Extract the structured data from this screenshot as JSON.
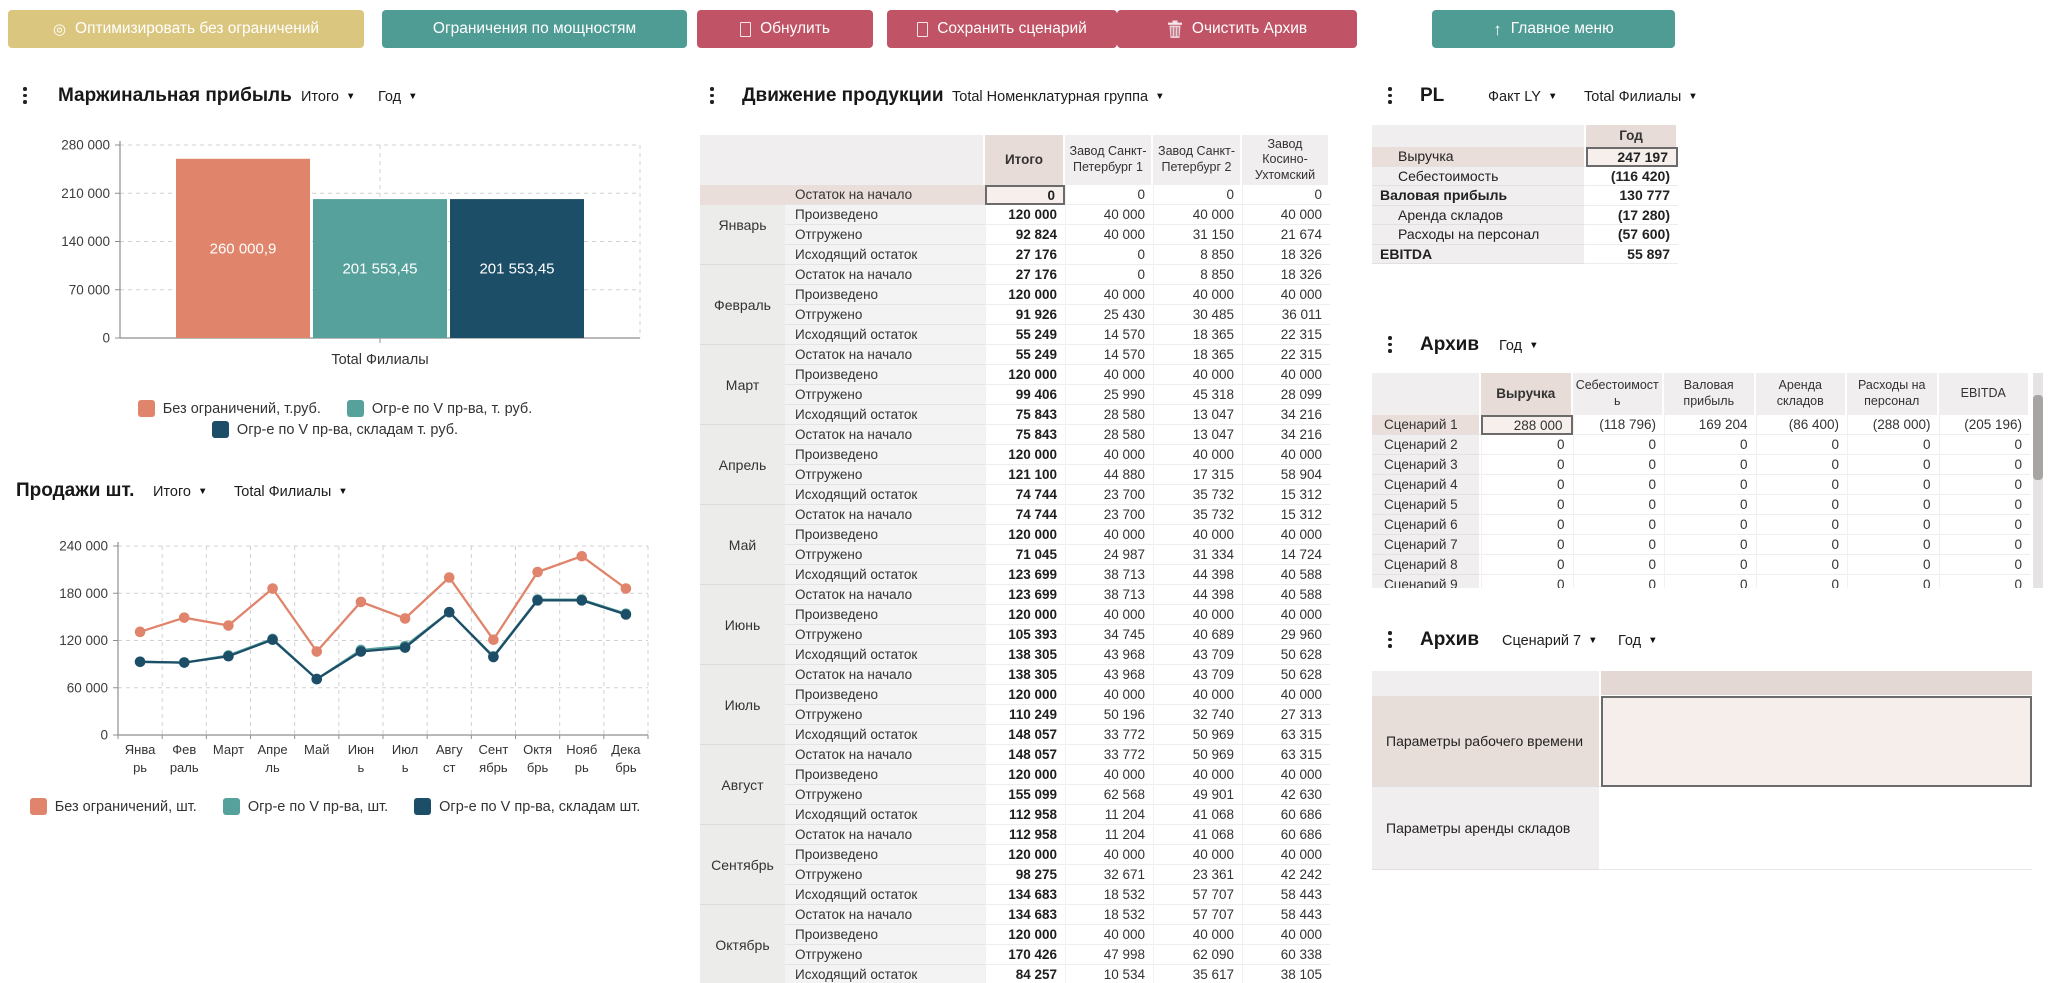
{
  "toolbar": {
    "buttons": [
      {
        "label": "Оптимизировать без ограничений",
        "icon": "gear",
        "bg": "#dbc67f"
      },
      {
        "label": "Ограничения по мощностям",
        "icon": null,
        "bg": "#4f9c95"
      },
      {
        "label": "Обнулить",
        "icon": "glyph-box",
        "bg": "#c05365"
      },
      {
        "label": "Сохранить сценарий",
        "icon": "glyph-box",
        "bg": "#c05365"
      },
      {
        "label": "Очистить Архив",
        "icon": "trash",
        "bg": "#c05365"
      },
      {
        "label": "Главное меню",
        "icon": "arrow-up",
        "bg": "#4f9c95"
      }
    ]
  },
  "colors": {
    "salmon": "#e0846c",
    "teal": "#56a19b",
    "dark_blue": "#1d4e68",
    "pink_header": "#e8dcd8",
    "pink_selected_row": "#eadeda",
    "pink_selected_cell": "#f7efec",
    "gray_header": "#f0eeee"
  },
  "margin_profit": {
    "title": "Маржинальная прибыль",
    "filters": [
      {
        "value": "Итого"
      },
      {
        "value": "Год"
      }
    ],
    "chart_data": {
      "type": "bar",
      "title": "Маржинальная прибыль",
      "categories": [
        "Total Филиалы"
      ],
      "series": [
        {
          "name": "Без ограничений, т.руб.",
          "color": "#e0846c",
          "values": [
            260000.9
          ],
          "label": "260 000,9"
        },
        {
          "name": "Огр-е по V пр-ва, т. руб.",
          "color": "#56a19b",
          "values": [
            201553.45
          ],
          "label": "201 553,45"
        },
        {
          "name": "Огр-е по V пр-ва, складам т. руб.",
          "color": "#1d4e68",
          "values": [
            201553.45
          ],
          "label": "201 553,45"
        }
      ],
      "ylim": [
        0,
        280000
      ],
      "yticks": [
        "0",
        "70 000",
        "140 000",
        "210 000",
        "280 000"
      ],
      "grid": "dashed",
      "legend_position": "bottom"
    }
  },
  "sales": {
    "title": "Продажи шт.",
    "filters": [
      {
        "value": "Итого"
      },
      {
        "value": "Total Филиалы"
      }
    ],
    "chart_data": {
      "type": "line",
      "categories": [
        "Январь",
        "Февраль",
        "Март",
        "Апрель",
        "Май",
        "Июнь",
        "Июль",
        "Август",
        "Сентябрь",
        "Октябрь",
        "Ноябрь",
        "Декабрь"
      ],
      "tick_labels": [
        [
          "Янва",
          "рь"
        ],
        [
          "Фев",
          "раль"
        ],
        [
          "Март"
        ],
        [
          "Апре",
          "ль"
        ],
        [
          "Май"
        ],
        [
          "Июн",
          "ь"
        ],
        [
          "Июл",
          "ь"
        ],
        [
          "Авгу",
          "ст"
        ],
        [
          "Сент",
          "ябрь"
        ],
        [
          "Октя",
          "брь"
        ],
        [
          "Нояб",
          "рь"
        ],
        [
          "Дека",
          "брь"
        ]
      ],
      "series": [
        {
          "name": "Огр-е по V пр-ва, шт.",
          "color": "#56a19b",
          "values": [
            93000,
            92000,
            101000,
            122000,
            71000,
            108000,
            113000,
            156000,
            100000,
            172000,
            172000,
            154000
          ]
        },
        {
          "name": "Огр-е по V пр-ва, складам шт.",
          "color": "#1d4e68",
          "values": [
            93000,
            92000,
            100000,
            121000,
            71000,
            106000,
            111000,
            156000,
            99000,
            171000,
            171000,
            153000
          ]
        },
        {
          "name": "Без ограничений, шт.",
          "color": "#e0846c",
          "values": [
            131000,
            149000,
            139000,
            186000,
            106000,
            169000,
            148000,
            200000,
            121000,
            207000,
            227000,
            186000
          ]
        }
      ],
      "legend": [
        {
          "label": "Без ограничений, шт.",
          "color": "#e0846c"
        },
        {
          "label": "Огр-е по V пр-ва, шт.",
          "color": "#56a19b"
        },
        {
          "label": "Огр-е по V пр-ва, складам шт.",
          "color": "#1d4e68"
        }
      ],
      "ylim": [
        0,
        240000
      ],
      "yticks": [
        "0",
        "60 000",
        "120 000",
        "180 000",
        "240 000"
      ],
      "grid": "dashed",
      "legend_position": "bottom"
    }
  },
  "movement": {
    "title": "Движение продукции",
    "filters": [
      {
        "value": "Total Номенклатурная группа"
      }
    ],
    "columns": [
      "Итого",
      "Завод Санкт-Петербург 1",
      "Завод Санкт-Петербург 2",
      "Завод Косино-Ухтомский"
    ],
    "row_labels": [
      "Остаток на начало",
      "Произведено",
      "Отгружено",
      "Исходящий остаток"
    ],
    "months": [
      {
        "name": "Январь",
        "rows": [
          [
            "0",
            "0",
            "0",
            "0"
          ],
          [
            "120 000",
            "40 000",
            "40 000",
            "40 000"
          ],
          [
            "92 824",
            "40 000",
            "31 150",
            "21 674"
          ],
          [
            "27 176",
            "0",
            "8 850",
            "18 326"
          ]
        ]
      },
      {
        "name": "Февраль",
        "rows": [
          [
            "27 176",
            "0",
            "8 850",
            "18 326"
          ],
          [
            "120 000",
            "40 000",
            "40 000",
            "40 000"
          ],
          [
            "91 926",
            "25 430",
            "30 485",
            "36 011"
          ],
          [
            "55 249",
            "14 570",
            "18 365",
            "22 315"
          ]
        ]
      },
      {
        "name": "Март",
        "rows": [
          [
            "55 249",
            "14 570",
            "18 365",
            "22 315"
          ],
          [
            "120 000",
            "40 000",
            "40 000",
            "40 000"
          ],
          [
            "99 406",
            "25 990",
            "45 318",
            "28 099"
          ],
          [
            "75 843",
            "28 580",
            "13 047",
            "34 216"
          ]
        ]
      },
      {
        "name": "Апрель",
        "rows": [
          [
            "75 843",
            "28 580",
            "13 047",
            "34 216"
          ],
          [
            "120 000",
            "40 000",
            "40 000",
            "40 000"
          ],
          [
            "121 100",
            "44 880",
            "17 315",
            "58 904"
          ],
          [
            "74 744",
            "23 700",
            "35 732",
            "15 312"
          ]
        ]
      },
      {
        "name": "Май",
        "rows": [
          [
            "74 744",
            "23 700",
            "35 732",
            "15 312"
          ],
          [
            "120 000",
            "40 000",
            "40 000",
            "40 000"
          ],
          [
            "71 045",
            "24 987",
            "31 334",
            "14 724"
          ],
          [
            "123 699",
            "38 713",
            "44 398",
            "40 588"
          ]
        ]
      },
      {
        "name": "Июнь",
        "rows": [
          [
            "123 699",
            "38 713",
            "44 398",
            "40 588"
          ],
          [
            "120 000",
            "40 000",
            "40 000",
            "40 000"
          ],
          [
            "105 393",
            "34 745",
            "40 689",
            "29 960"
          ],
          [
            "138 305",
            "43 968",
            "43 709",
            "50 628"
          ]
        ]
      },
      {
        "name": "Июль",
        "rows": [
          [
            "138 305",
            "43 968",
            "43 709",
            "50 628"
          ],
          [
            "120 000",
            "40 000",
            "40 000",
            "40 000"
          ],
          [
            "110 249",
            "50 196",
            "32 740",
            "27 313"
          ],
          [
            "148 057",
            "33 772",
            "50 969",
            "63 315"
          ]
        ]
      },
      {
        "name": "Август",
        "rows": [
          [
            "148 057",
            "33 772",
            "50 969",
            "63 315"
          ],
          [
            "120 000",
            "40 000",
            "40 000",
            "40 000"
          ],
          [
            "155 099",
            "62 568",
            "49 901",
            "42 630"
          ],
          [
            "112 958",
            "11 204",
            "41 068",
            "60 686"
          ]
        ]
      },
      {
        "name": "Сентябрь",
        "rows": [
          [
            "112 958",
            "11 204",
            "41 068",
            "60 686"
          ],
          [
            "120 000",
            "40 000",
            "40 000",
            "40 000"
          ],
          [
            "98 275",
            "32 671",
            "23 361",
            "42 242"
          ],
          [
            "134 683",
            "18 532",
            "57 707",
            "58 443"
          ]
        ]
      },
      {
        "name": "Октябрь",
        "rows": [
          [
            "134 683",
            "18 532",
            "57 707",
            "58 443"
          ],
          [
            "120 000",
            "40 000",
            "40 000",
            "40 000"
          ],
          [
            "170 426",
            "47 998",
            "62 090",
            "60 338"
          ],
          [
            "84 257",
            "10 534",
            "35 617",
            "38 105"
          ]
        ]
      }
    ]
  },
  "pl": {
    "title": "PL",
    "filters": [
      {
        "value": "Факт LY"
      },
      {
        "value": "Total Филиалы"
      }
    ],
    "column": "Год",
    "rows": [
      {
        "label": "Выручка",
        "value": "247 197",
        "indent": true,
        "selected": true
      },
      {
        "label": "Себестоимость",
        "value": "(116 420)",
        "indent": true
      },
      {
        "label": "Валовая прибыль",
        "value": "130 777",
        "bold": true
      },
      {
        "label": "Аренда складов",
        "value": "(17 280)",
        "indent": true
      },
      {
        "label": "Расходы на персонал",
        "value": "(57 600)",
        "indent": true
      },
      {
        "label": "EBITDA",
        "value": "55 897",
        "bold": true
      }
    ]
  },
  "archive": {
    "title": "Архив",
    "filters": [
      {
        "value": "Год"
      }
    ],
    "columns": [
      "Выручка",
      "Себестоимость",
      "Валовая прибыль",
      "Аренда складов",
      "Расходы на персонал",
      "EBITDA"
    ],
    "rows": [
      {
        "label": "Сценарий 1",
        "values": [
          "288 000",
          "(118 796)",
          "169 204",
          "(86 400)",
          "(288 000)",
          "(205 196)"
        ],
        "selected": true
      },
      {
        "label": "Сценарий 2",
        "values": [
          "0",
          "0",
          "0",
          "0",
          "0",
          "0"
        ]
      },
      {
        "label": "Сценарий 3",
        "values": [
          "0",
          "0",
          "0",
          "0",
          "0",
          "0"
        ]
      },
      {
        "label": "Сценарий 4",
        "values": [
          "0",
          "0",
          "0",
          "0",
          "0",
          "0"
        ]
      },
      {
        "label": "Сценарий 5",
        "values": [
          "0",
          "0",
          "0",
          "0",
          "0",
          "0"
        ]
      },
      {
        "label": "Сценарий 6",
        "values": [
          "0",
          "0",
          "0",
          "0",
          "0",
          "0"
        ]
      },
      {
        "label": "Сценарий 7",
        "values": [
          "0",
          "0",
          "0",
          "0",
          "0",
          "0"
        ]
      },
      {
        "label": "Сценарий 8",
        "values": [
          "0",
          "0",
          "0",
          "0",
          "0",
          "0"
        ]
      },
      {
        "label": "Сценарий 9",
        "values": [
          "0",
          "0",
          "0",
          "0",
          "0",
          "0"
        ]
      }
    ]
  },
  "archive_params": {
    "title": "Архив",
    "filters": [
      {
        "value": "Сценарий 7"
      },
      {
        "value": "Год"
      }
    ],
    "rows": [
      {
        "label": "Параметры рабочего времени",
        "selected": true
      },
      {
        "label": "Параметры аренды складов"
      }
    ]
  }
}
